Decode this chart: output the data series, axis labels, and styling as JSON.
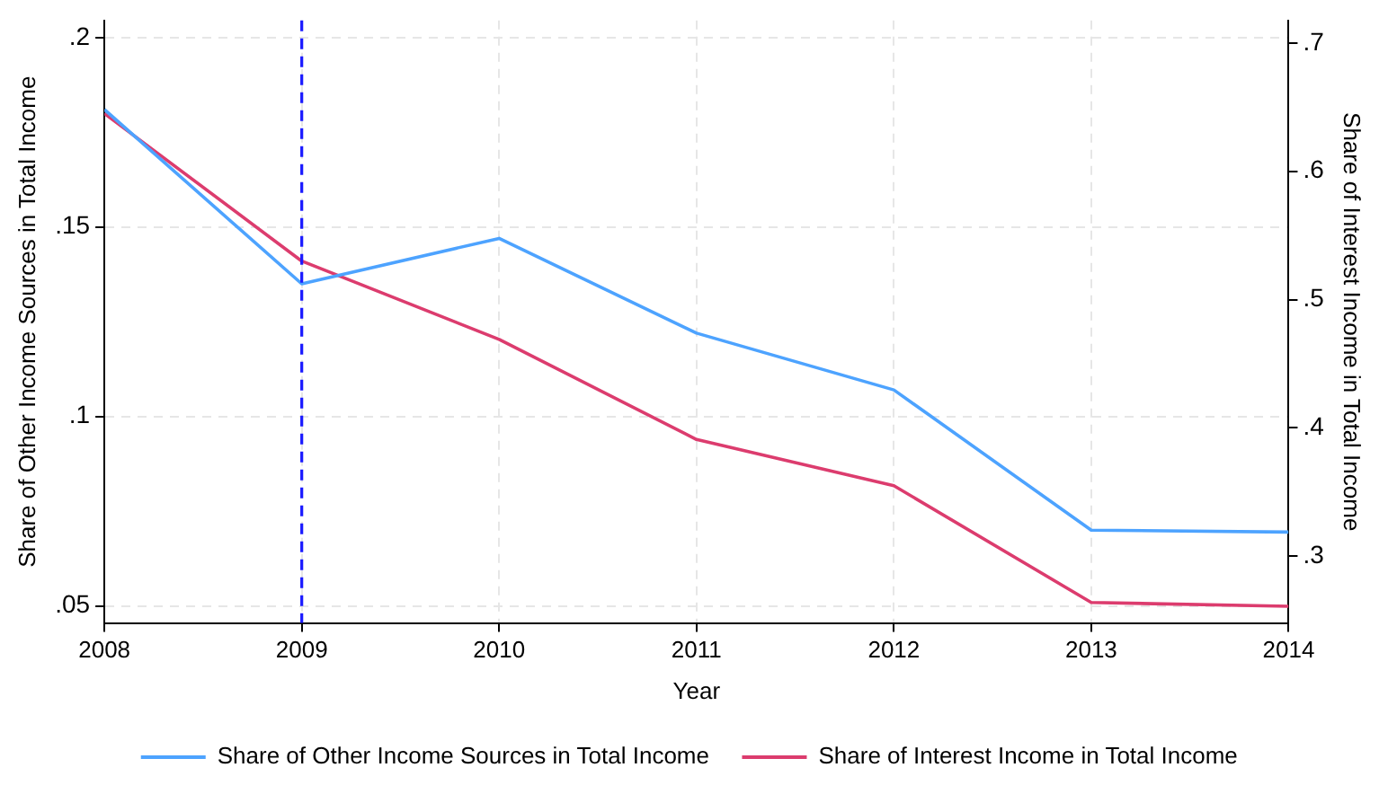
{
  "chart_data": {
    "type": "line",
    "xlabel": "Year",
    "ylabel": "Share of Other Income Sources in Total Income",
    "y2label": "Share of Interest Income in Total Income",
    "x": [
      2008,
      2009,
      2010,
      2011,
      2012,
      2013,
      2014
    ],
    "xlim": [
      2008,
      2014
    ],
    "xticks": [
      2008,
      2009,
      2010,
      2011,
      2012,
      2013,
      2014
    ],
    "ylim": [
      0.0455,
      0.2045
    ],
    "yticks": [
      {
        "value": 0.05,
        "label": ".05"
      },
      {
        "value": 0.1,
        "label": ".1"
      },
      {
        "value": 0.15,
        "label": ".15"
      },
      {
        "value": 0.2,
        "label": ".2"
      }
    ],
    "y2lim": [
      0.248,
      0.7175
    ],
    "y2ticks": [
      {
        "value": 0.3,
        "label": ".3"
      },
      {
        "value": 0.4,
        "label": ".4"
      },
      {
        "value": 0.5,
        "label": ".5"
      },
      {
        "value": 0.6,
        "label": ".6"
      },
      {
        "value": 0.7,
        "label": ".7"
      }
    ],
    "series": [
      {
        "name": "Share of Other Income Sources in Total Income",
        "color": "#4da3ff",
        "values": [
          0.181,
          0.135,
          0.147,
          0.122,
          0.107,
          0.07,
          0.0695
        ]
      },
      {
        "name": "Share of Interest Income in Total Income",
        "color": "#dc3c6e",
        "axis": "y2",
        "values": [
          0.645,
          0.53,
          0.469,
          0.391,
          0.355,
          0.264,
          0.261
        ]
      }
    ],
    "ref_lines": [
      {
        "axis": "x",
        "value": 2009,
        "color": "#1a1aff",
        "line_style": "dashed"
      }
    ],
    "grid": true,
    "legend": "bottom",
    "marker": "none",
    "line_style": "solid"
  }
}
